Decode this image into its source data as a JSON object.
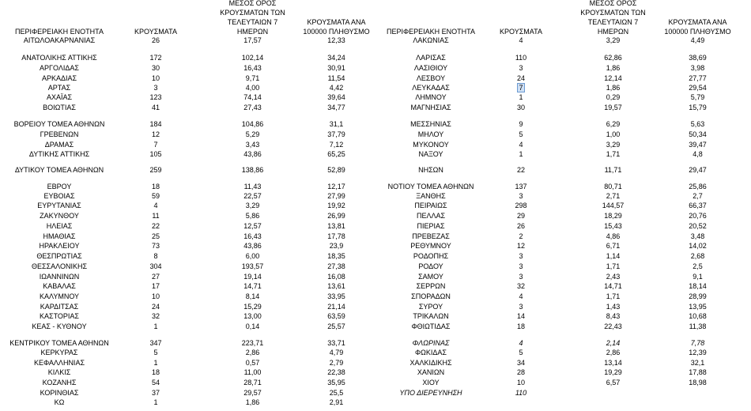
{
  "header": [
    "ΠΕΡΙΦΕΡΕΙΑΚΗ ΕΝΟΤΗΤΑ",
    "ΚΡΟΥΣΜΑΤΑ",
    "ΜΕΣΟΣ ΟΡΟΣ ΚΡΟΥΣΜΑΤΩΝ ΤΩΝ ΤΕΛΕΥΤΑΙΩΝ 7 ΗΜΕΡΩΝ",
    "ΚΡΟΥΣΜΑΤΑ ΑΝΑ 100000 ΠΛΗΘΥΣΜΟ"
  ],
  "left": [
    [
      "ΑΙΤΩΛΟΑΚΑΡΝΑΝΙΑΣ",
      "26",
      "17,57",
      "12,33"
    ],
    [
      "ΑΝΑΤΟΛΙΚΗΣ ΑΤΤΙΚΗΣ",
      "172",
      "102,14",
      "34,24"
    ],
    [
      "ΑΡΓΟΛΙΔΑΣ",
      "30",
      "16,43",
      "30,91"
    ],
    [
      "ΑΡΚΑΔΙΑΣ",
      "10",
      "9,71",
      "11,54"
    ],
    [
      "ΑΡΤΑΣ",
      "3",
      "4,00",
      "4,42"
    ],
    [
      "ΑΧΑΪΑΣ",
      "123",
      "74,14",
      "39,64"
    ],
    [
      "ΒΟΙΩΤΙΑΣ",
      "41",
      "27,43",
      "34,77"
    ],
    [
      "ΒΟΡΕΙΟΥ ΤΟΜΕΑ ΑΘΗΝΩΝ",
      "184",
      "104,86",
      "31,1"
    ],
    [
      "ΓΡΕΒΕΝΩΝ",
      "12",
      "5,29",
      "37,79"
    ],
    [
      "ΔΡΑΜΑΣ",
      "7",
      "3,43",
      "7,12"
    ],
    [
      "ΔΥΤΙΚΗΣ ΑΤΤΙΚΗΣ",
      "105",
      "43,86",
      "65,25"
    ],
    [
      "ΔΥΤΙΚΟΥ ΤΟΜΕΑ ΑΘΗΝΩΝ",
      "259",
      "138,86",
      "52,89"
    ],
    [
      "ΕΒΡΟΥ",
      "18",
      "11,43",
      "12,17"
    ],
    [
      "ΕΥΒΟΙΑΣ",
      "59",
      "22,57",
      "27,99"
    ],
    [
      "ΕΥΡΥΤΑΝΙΑΣ",
      "4",
      "3,29",
      "19,92"
    ],
    [
      "ΖΑΚΥΝΘΟΥ",
      "11",
      "5,86",
      "26,99"
    ],
    [
      "ΗΛΕΙΑΣ",
      "22",
      "12,57",
      "13,81"
    ],
    [
      "ΗΜΑΘΙΑΣ",
      "25",
      "16,43",
      "17,78"
    ],
    [
      "ΗΡΑΚΛΕΙΟΥ",
      "73",
      "43,86",
      "23,9"
    ],
    [
      "ΘΕΣΠΡΩΤΙΑΣ",
      "8",
      "6,00",
      "18,35"
    ],
    [
      "ΘΕΣΣΑΛΟΝΙΚΗΣ",
      "304",
      "193,57",
      "27,38"
    ],
    [
      "ΙΩΑΝΝΙΝΩΝ",
      "27",
      "19,14",
      "16,08"
    ],
    [
      "ΚΑΒΑΛΑΣ",
      "17",
      "14,71",
      "13,61"
    ],
    [
      "ΚΑΛΥΜΝΟΥ",
      "10",
      "8,14",
      "33,95"
    ],
    [
      "ΚΑΡΔΙΤΣΑΣ",
      "24",
      "15,29",
      "21,14"
    ],
    [
      "ΚΑΣΤΟΡΙΑΣ",
      "32",
      "13,00",
      "63,59"
    ],
    [
      "ΚΕΑΣ - ΚΥΘΝΟΥ",
      "1",
      "0,14",
      "25,57"
    ],
    [
      "ΚΕΝΤΡΙΚΟΥ ΤΟΜΕΑ ΑΘΗΝΩΝ",
      "347",
      "223,71",
      "33,71"
    ],
    [
      "ΚΕΡΚΥΡΑΣ",
      "5",
      "2,86",
      "4,79"
    ],
    [
      "ΚΕΦΑΛΛΗΝΙΑΣ",
      "1",
      "0,57",
      "2,79"
    ],
    [
      "ΚΙΛΚΙΣ",
      "18",
      "11,00",
      "22,38"
    ],
    [
      "ΚΟΖΑΝΗΣ",
      "54",
      "28,71",
      "35,95"
    ],
    [
      "ΚΟΡΙΝΘΙΑΣ",
      "37",
      "29,57",
      "25,5"
    ],
    [
      "ΚΩ",
      "1",
      "1,86",
      "2,91"
    ]
  ],
  "right": [
    [
      "ΛΑΚΩΝΙΑΣ",
      "4",
      "3,29",
      "4,49"
    ],
    [
      "ΛΑΡΙΣΑΣ",
      "110",
      "62,86",
      "38,69"
    ],
    [
      "ΛΑΣΙΘΙΟΥ",
      "3",
      "1,86",
      "3,98"
    ],
    [
      "ΛΕΣΒΟΥ",
      "24",
      "12,14",
      "27,77"
    ],
    [
      "ΛΕΥΚΑΔΑΣ",
      "7",
      "1,86",
      "29,54"
    ],
    [
      "ΛΗΜΝΟΥ",
      "1",
      "0,29",
      "5,79"
    ],
    [
      "ΜΑΓΝΗΣΙΑΣ",
      "30",
      "19,57",
      "15,79"
    ],
    [
      "ΜΕΣΣΗΝΙΑΣ",
      "9",
      "6,29",
      "5,63"
    ],
    [
      "ΜΗΛΟΥ",
      "5",
      "1,00",
      "50,34"
    ],
    [
      "ΜΥΚΟΝΟΥ",
      "4",
      "3,29",
      "39,47"
    ],
    [
      "ΝΑΞΟΥ",
      "1",
      "1,71",
      "4,8"
    ],
    [
      "ΝΗΣΩΝ",
      "22",
      "11,71",
      "29,47"
    ],
    [
      "ΝΟΤΙΟΥ ΤΟΜΕΑ ΑΘΗΝΩΝ",
      "137",
      "80,71",
      "25,86"
    ],
    [
      "ΞΑΝΘΗΣ",
      "3",
      "2,71",
      "2,7"
    ],
    [
      "ΠΕΙΡΑΙΩΣ",
      "298",
      "144,57",
      "66,37"
    ],
    [
      "ΠΕΛΛΑΣ",
      "29",
      "18,29",
      "20,76"
    ],
    [
      "ΠΙΕΡΙΑΣ",
      "26",
      "15,43",
      "20,52"
    ],
    [
      "ΠΡΕΒΕΖΑΣ",
      "2",
      "4,86",
      "3,48"
    ],
    [
      "ΡΕΘΥΜΝΟΥ",
      "12",
      "6,71",
      "14,02"
    ],
    [
      "ΡΟΔΟΠΗΣ",
      "3",
      "1,14",
      "2,68"
    ],
    [
      "ΡΟΔΟΥ",
      "3",
      "1,71",
      "2,5"
    ],
    [
      "ΣΑΜΟΥ",
      "3",
      "2,43",
      "9,1"
    ],
    [
      "ΣΕΡΡΩΝ",
      "32",
      "14,71",
      "18,14"
    ],
    [
      "ΣΠΟΡΑΔΩΝ",
      "4",
      "1,71",
      "28,99"
    ],
    [
      "ΣΥΡΟΥ",
      "3",
      "1,43",
      "13,95"
    ],
    [
      "ΤΡΙΚΑΛΩΝ",
      "14",
      "8,43",
      "10,68"
    ],
    [
      "ΦΘΙΩΤΙΔΑΣ",
      "18",
      "22,43",
      "11,38"
    ],
    [
      "ΦΛΩΡΙΝΑΣ",
      "4",
      "2,14",
      "7,78"
    ],
    [
      "ΦΩΚΙΔΑΣ",
      "5",
      "2,86",
      "12,39"
    ],
    [
      "ΧΑΛΚΙΔΙΚΗΣ",
      "34",
      "13,14",
      "32,1"
    ],
    [
      "ΧΑΝΙΩΝ",
      "28",
      "19,29",
      "17,88"
    ],
    [
      "ΧΙΟΥ",
      "10",
      "6,57",
      "18,98"
    ],
    [
      "ΥΠΟ ΔΙΕΡΕΥΝΗΣΗ",
      "110"
    ]
  ]
}
